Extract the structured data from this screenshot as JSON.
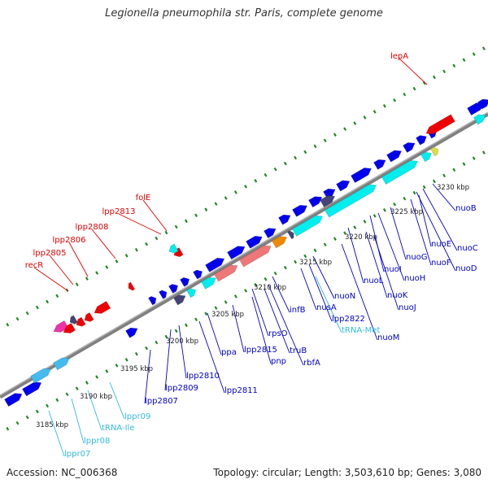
{
  "title": "Legionella pneumophila str. Paris, complete genome",
  "footer": {
    "accession": "Accession: NC_006368",
    "summary": "Topology: circular; Length: 3,503,610 bp; Genes: 3,080"
  },
  "colors": {
    "red_label": "#e00000",
    "blue_label": "#0000cc",
    "cyan_label": "#33bbdd",
    "backbone": "#888888",
    "tick_green": "#228822",
    "gene_red": "#ee0000",
    "gene_blue": "#0000ee",
    "gene_cyan": "#00eeee",
    "gene_lightblue": "#44bbee",
    "gene_salmon": "#ee7777",
    "gene_orange": "#ee8800",
    "gene_navy": "#444477",
    "gene_magenta": "#ee33aa"
  },
  "scale_labels": [
    "3185 kbp",
    "3190 kbp",
    "3195 kbp",
    "3200 kbp",
    "3205 kbp",
    "3210 kbp",
    "3215 kbp",
    "3220 kbp",
    "3225 kbp",
    "3230 kbp"
  ],
  "gene_labels_red": [
    "lepA",
    "folE",
    "lpp2813",
    "lpp2808",
    "lpp2806",
    "lpp2805",
    "recR"
  ],
  "gene_labels_blue": [
    "nuoB",
    "nuoE",
    "nuoC",
    "nuoF",
    "nuoD",
    "nuoG",
    "nuoI",
    "nuoH",
    "nuoL",
    "nuoK",
    "nuoJ",
    "nuoN",
    "nuoM",
    "nusA",
    "infB",
    "lpp2822",
    "rpsO",
    "truB",
    "rbfA",
    "pnp",
    "lpp2815",
    "ppa",
    "lpp2810",
    "lpp2811",
    "lpp2809",
    "lpp2807"
  ],
  "gene_labels_cyan": [
    "tRNA-Met",
    "lppr09",
    "tRNA-Ile",
    "lppr08",
    "lppr07"
  ]
}
